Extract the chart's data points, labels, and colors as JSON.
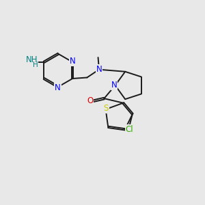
{
  "bg": "#e8e8e8",
  "bond_color": "#1a1a1a",
  "N_color": "#0000ff",
  "O_color": "#dd0000",
  "S_color": "#cccc00",
  "Cl_color": "#33aa00",
  "NH_color": "#008080",
  "lw": 1.4,
  "fs": 8.5,
  "xlim": [
    0,
    10
  ],
  "ylim": [
    0,
    10
  ]
}
